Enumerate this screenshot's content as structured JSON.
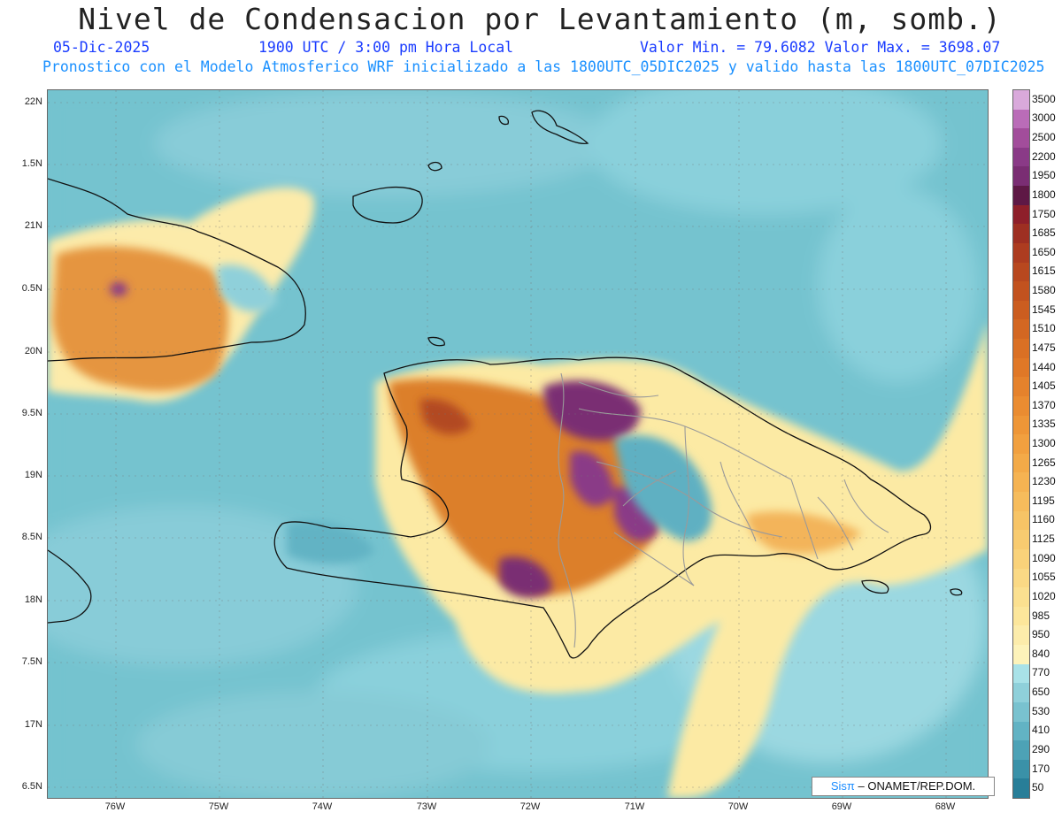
{
  "header": {
    "title": "Nivel de Condensacion por Levantamiento (m, somb.)",
    "date": "05-Dic-2025",
    "time": "1900 UTC / 3:00 pm Hora Local",
    "min_max": "Valor Min. = 79.6082  Valor Max. = 3698.07",
    "model_line": "Pronostico con el Modelo Atmosferico WRF inicializado a las 1800UTC_05DIC2025 y valido hasta las  1800UTC_07DIC2025"
  },
  "axes": {
    "lat_labels": [
      "22N",
      "1.5N",
      "21N",
      "0.5N",
      "20N",
      "9.5N",
      "19N",
      "8.5N",
      "18N",
      "7.5N",
      "17N",
      "6.5N"
    ],
    "lon_labels": [
      "76W",
      "75W",
      "74W",
      "73W",
      "72W",
      "71W",
      "70W",
      "69W",
      "68W"
    ]
  },
  "colorbar": {
    "labels": [
      "3500",
      "3000",
      "2500",
      "2200",
      "1950",
      "1800",
      "1750",
      "1685",
      "1650",
      "1615",
      "1580",
      "1545",
      "1510",
      "1475",
      "1440",
      "1405",
      "1370",
      "1335",
      "1300",
      "1265",
      "1230",
      "1195",
      "1160",
      "1125",
      "1090",
      "1055",
      "1020",
      "985",
      "950",
      "840",
      "770",
      "650",
      "530",
      "410",
      "290",
      "170",
      "50"
    ],
    "colors": [
      "#d9a9db",
      "#ba6cb8",
      "#a24d9b",
      "#8a3a87",
      "#7a2d73",
      "#5e1845",
      "#8e1f2a",
      "#9e2f22",
      "#ad3c20",
      "#b8481f",
      "#c2521f",
      "#cb5d20",
      "#d36722",
      "#da7024",
      "#e07827",
      "#e5822c",
      "#ea8c31",
      "#ee9637",
      "#f1a03f",
      "#f3aa48",
      "#f5b352",
      "#f6bc5c",
      "#f7c466",
      "#f8cb70",
      "#f9d27a",
      "#fad985",
      "#fbe090",
      "#fce69b",
      "#fcecab",
      "#fdf3ba",
      "#a9e2e8",
      "#8fd0da",
      "#79c2cf",
      "#62b3c4",
      "#4da2b6",
      "#3a91a8",
      "#287e98"
    ]
  },
  "credit": {
    "sis": "Sisπ",
    "org": "ONAMET/REP.DOM."
  }
}
